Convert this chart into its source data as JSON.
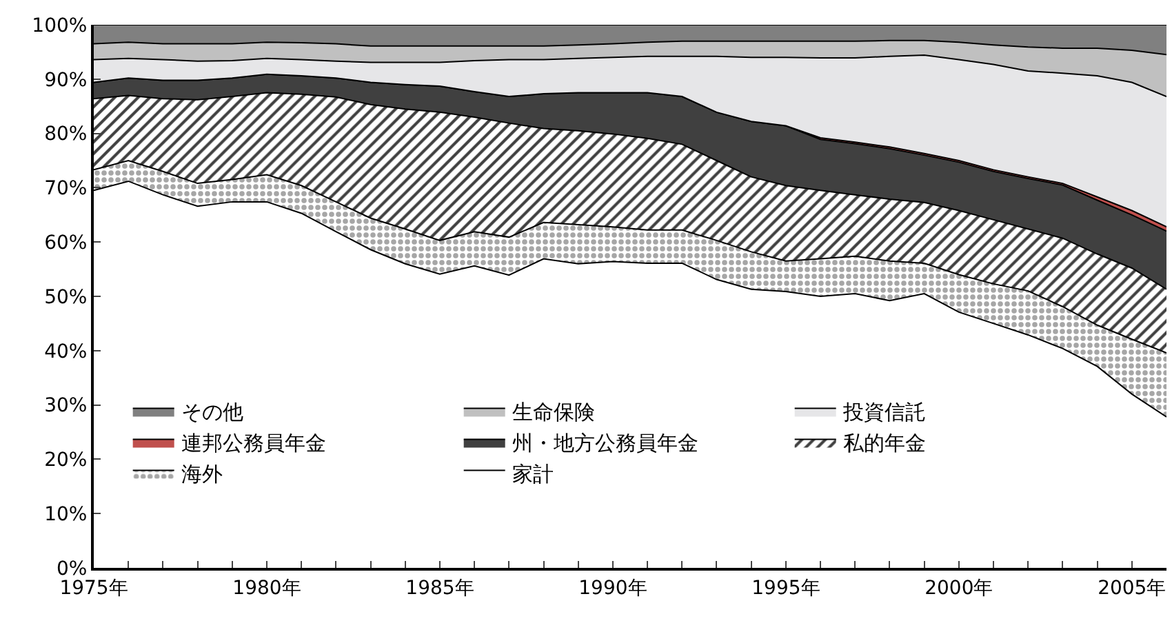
{
  "chart_data": {
    "type": "area",
    "stacked": true,
    "x": [
      1975,
      1976,
      1977,
      1978,
      1979,
      1980,
      1981,
      1982,
      1983,
      1984,
      1985,
      1986,
      1987,
      1988,
      1989,
      1990,
      1991,
      1992,
      1993,
      1994,
      1995,
      1996,
      1997,
      1998,
      1999,
      2000,
      2001,
      2002,
      2003,
      2004,
      2005,
      2006
    ],
    "series": [
      {
        "name": "家計",
        "color": "#ffffff",
        "values": [
          69.5,
          71.2,
          68.7,
          66.6,
          67.4,
          67.4,
          65.3,
          61.9,
          58.6,
          56.0,
          54.1,
          55.6,
          53.9,
          56.9,
          56.0,
          56.4,
          56.1,
          56.1,
          53.1,
          51.3,
          50.9,
          50.0,
          50.5,
          49.2,
          50.5,
          47.1,
          45.0,
          42.9,
          40.4,
          37.1,
          32.0,
          27.8
        ]
      },
      {
        "name": "海外",
        "color": "#a6a6a6",
        "values": [
          3.8,
          3.8,
          4.3,
          4.2,
          4.1,
          5.0,
          5.1,
          5.5,
          5.8,
          6.4,
          6.2,
          6.3,
          7.0,
          6.7,
          7.2,
          6.4,
          6.1,
          6.1,
          7.2,
          6.9,
          5.6,
          6.9,
          6.9,
          7.3,
          5.6,
          6.9,
          7.3,
          8.1,
          7.7,
          7.6,
          10.1,
          11.8
        ]
      },
      {
        "name": "私的年金",
        "color": "#404040",
        "values": [
          13.1,
          12.0,
          13.4,
          15.4,
          15.3,
          15.1,
          16.8,
          19.3,
          20.9,
          22.1,
          23.6,
          21.1,
          21.0,
          17.3,
          17.3,
          17.1,
          16.9,
          15.8,
          14.7,
          13.8,
          13.9,
          12.6,
          11.3,
          11.4,
          11.2,
          11.8,
          11.8,
          11.4,
          12.6,
          13.1,
          13.1,
          11.7
        ]
      },
      {
        "name": "州・地方公務員年金",
        "color": "#404040",
        "values": [
          3.0,
          3.2,
          3.4,
          3.6,
          3.4,
          3.4,
          3.4,
          3.5,
          4.1,
          4.5,
          4.8,
          4.7,
          4.9,
          6.4,
          7.0,
          7.6,
          8.4,
          8.8,
          8.9,
          10.2,
          11.0,
          9.4,
          9.4,
          9.3,
          8.7,
          8.9,
          8.9,
          9.3,
          9.8,
          9.9,
          9.8,
          10.7
        ]
      },
      {
        "name": "連邦公務員年金",
        "color": "#c0504d",
        "values": [
          0,
          0,
          0,
          0,
          0,
          0,
          0,
          0,
          0,
          0,
          0,
          0,
          0,
          0,
          0,
          0,
          0,
          0,
          0,
          0,
          0,
          0.3,
          0.3,
          0.3,
          0.3,
          0.3,
          0.3,
          0.3,
          0.3,
          0.6,
          0.8,
          0.8
        ]
      },
      {
        "name": "投資信託",
        "color": "#e6e6e8",
        "values": [
          4.2,
          3.6,
          3.8,
          3.5,
          3.2,
          2.9,
          3.0,
          3.1,
          3.7,
          4.1,
          4.4,
          5.7,
          6.8,
          6.3,
          6.3,
          6.5,
          6.7,
          7.4,
          10.3,
          11.8,
          12.6,
          14.7,
          15.5,
          16.7,
          18.1,
          18.6,
          19.4,
          19.5,
          20.3,
          22.3,
          23.6,
          24.0
        ]
      },
      {
        "name": "生命保険",
        "color": "#c0c0c0",
        "values": [
          2.9,
          3.0,
          2.9,
          3.2,
          3.1,
          3.0,
          3.1,
          3.2,
          3.0,
          3.0,
          3.0,
          2.7,
          2.5,
          2.5,
          2.5,
          2.5,
          2.6,
          2.8,
          2.8,
          3.0,
          3.0,
          3.1,
          3.1,
          2.9,
          2.7,
          3.2,
          3.6,
          4.4,
          4.6,
          5.1,
          5.9,
          7.7
        ]
      },
      {
        "name": "その他",
        "color": "#808080",
        "values": [
          3.5,
          3.2,
          3.5,
          3.5,
          3.5,
          3.2,
          3.3,
          3.5,
          3.9,
          3.9,
          3.9,
          3.9,
          3.9,
          3.9,
          3.7,
          3.5,
          3.2,
          3.0,
          3.0,
          3.0,
          3.0,
          3.0,
          3.0,
          2.9,
          2.9,
          3.2,
          3.7,
          4.1,
          4.3,
          4.3,
          4.7,
          5.5
        ]
      }
    ],
    "xlim": [
      1975,
      2006
    ],
    "xticks": [
      {
        "value": 1975,
        "label": "1975年"
      },
      {
        "value": 1976,
        "label": null
      },
      {
        "value": 1977,
        "label": null
      },
      {
        "value": 1978,
        "label": null
      },
      {
        "value": 1979,
        "label": null
      },
      {
        "value": 1980,
        "label": "1980年"
      },
      {
        "value": 1981,
        "label": null
      },
      {
        "value": 1982,
        "label": null
      },
      {
        "value": 1983,
        "label": null
      },
      {
        "value": 1984,
        "label": null
      },
      {
        "value": 1985,
        "label": "1985年"
      },
      {
        "value": 1986,
        "label": null
      },
      {
        "value": 1987,
        "label": null
      },
      {
        "value": 1988,
        "label": null
      },
      {
        "value": 1989,
        "label": null
      },
      {
        "value": 1990,
        "label": "1990年"
      },
      {
        "value": 1991,
        "label": null
      },
      {
        "value": 1992,
        "label": null
      },
      {
        "value": 1993,
        "label": null
      },
      {
        "value": 1994,
        "label": null
      },
      {
        "value": 1995,
        "label": "1995年"
      },
      {
        "value": 1996,
        "label": null
      },
      {
        "value": 1997,
        "label": null
      },
      {
        "value": 1998,
        "label": null
      },
      {
        "value": 1999,
        "label": null
      },
      {
        "value": 2000,
        "label": "2000年"
      },
      {
        "value": 2001,
        "label": null
      },
      {
        "value": 2002,
        "label": null
      },
      {
        "value": 2003,
        "label": null
      },
      {
        "value": 2004,
        "label": null
      },
      {
        "value": 2005,
        "label": "2005年"
      }
    ],
    "ylim": [
      0,
      100
    ],
    "yticks": [
      {
        "value": 0,
        "label": "0%"
      },
      {
        "value": 10,
        "label": "10%"
      },
      {
        "value": 20,
        "label": "20%"
      },
      {
        "value": 30,
        "label": "30%"
      },
      {
        "value": 40,
        "label": "40%"
      },
      {
        "value": 50,
        "label": "50%"
      },
      {
        "value": 60,
        "label": "60%"
      },
      {
        "value": 70,
        "label": "70%"
      },
      {
        "value": 80,
        "label": "80%"
      },
      {
        "value": 90,
        "label": "90%"
      },
      {
        "value": 100,
        "label": "100%"
      }
    ],
    "legend": "bottom left"
  }
}
